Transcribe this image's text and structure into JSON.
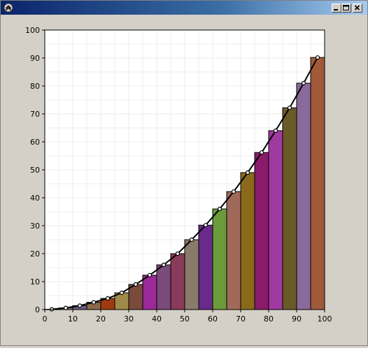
{
  "window": {
    "title": "",
    "controls": {
      "minimize": "minimize",
      "maximize": "maximize",
      "close": "close"
    }
  },
  "chart_data": {
    "type": "bar",
    "title": "",
    "xlabel": "",
    "ylabel": "",
    "xlim": [
      0,
      100
    ],
    "ylim": [
      0,
      100
    ],
    "x_ticks": [
      "0",
      "10",
      "20",
      "30",
      "40",
      "50",
      "60",
      "70",
      "80",
      "90",
      "100"
    ],
    "y_ticks": [
      "0",
      "10",
      "20",
      "30",
      "40",
      "50",
      "60",
      "70",
      "80",
      "90",
      "100"
    ],
    "grid": true,
    "legend": "none",
    "bars": [
      {
        "x": 2.5,
        "value": 0.1,
        "color": "#7a6a5a"
      },
      {
        "x": 7.5,
        "value": 0.6,
        "color": "#8a7a6a"
      },
      {
        "x": 12.5,
        "value": 1.4,
        "color": "#6b5a8a"
      },
      {
        "x": 17.5,
        "value": 2.6,
        "color": "#8a6a4a"
      },
      {
        "x": 22.5,
        "value": 4.0,
        "color": "#a03a10"
      },
      {
        "x": 27.5,
        "value": 6.0,
        "color": "#a08a4a"
      },
      {
        "x": 32.5,
        "value": 9.0,
        "color": "#7a4a3a"
      },
      {
        "x": 37.5,
        "value": 12.3,
        "color": "#9a2a9a"
      },
      {
        "x": 42.5,
        "value": 16.0,
        "color": "#7a4a7a"
      },
      {
        "x": 47.5,
        "value": 20.0,
        "color": "#8a3a5a"
      },
      {
        "x": 52.5,
        "value": 25.0,
        "color": "#8a7a6a"
      },
      {
        "x": 57.5,
        "value": 30.2,
        "color": "#6a2a8a"
      },
      {
        "x": 62.5,
        "value": 36.0,
        "color": "#6a9a3a"
      },
      {
        "x": 67.5,
        "value": 42.2,
        "color": "#a06a5a"
      },
      {
        "x": 72.5,
        "value": 49.0,
        "color": "#8a6a1a"
      },
      {
        "x": 77.5,
        "value": 56.2,
        "color": "#8a1a6a"
      },
      {
        "x": 82.5,
        "value": 64.0,
        "color": "#a03aa0"
      },
      {
        "x": 87.5,
        "value": 72.2,
        "color": "#6a5a2a"
      },
      {
        "x": 92.5,
        "value": 81.0,
        "color": "#8a6a9a"
      },
      {
        "x": 97.5,
        "value": 90.2,
        "color": "#a05a3a"
      }
    ],
    "series": [
      {
        "type": "line",
        "color": "#000000",
        "x": [
          2.5,
          7.5,
          12.5,
          17.5,
          22.5,
          27.5,
          32.5,
          37.5,
          42.5,
          47.5,
          52.5,
          57.5,
          62.5,
          67.5,
          72.5,
          77.5,
          82.5,
          87.5,
          92.5,
          97.5
        ],
        "y": [
          0.1,
          0.6,
          1.4,
          2.6,
          4.0,
          6.0,
          9.0,
          12.3,
          16.0,
          20.0,
          25.0,
          30.2,
          36.0,
          42.2,
          49.0,
          56.2,
          64.0,
          72.2,
          81.0,
          90.2
        ]
      }
    ]
  }
}
